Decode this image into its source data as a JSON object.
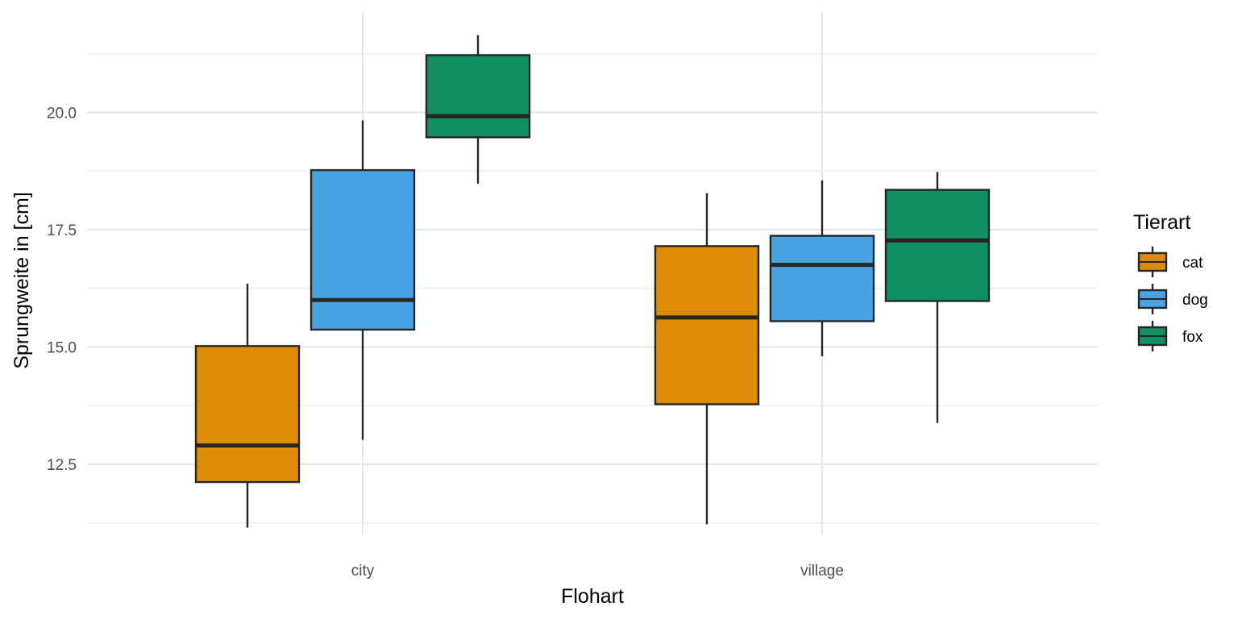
{
  "chart_data": {
    "type": "boxplot",
    "xlabel": "Flohart",
    "ylabel": "Sprungweite in [cm]",
    "categories": [
      "city",
      "village"
    ],
    "ylim": [
      11.0,
      21.9
    ],
    "yticks": [
      12.5,
      15.0,
      17.5,
      20.0
    ],
    "ytick_labels": [
      "12.5",
      "15.0",
      "17.5",
      "20.0"
    ],
    "grid": true,
    "legend": {
      "title": "Tierart",
      "position": "right"
    },
    "series": [
      {
        "name": "cat",
        "color": "#DE8C07",
        "boxes": [
          {
            "category": "city",
            "min": 11.15,
            "q1": 12.12,
            "median": 12.9,
            "q3": 15.02,
            "max": 16.35
          },
          {
            "category": "village",
            "min": 11.22,
            "q1": 13.78,
            "median": 15.63,
            "q3": 17.15,
            "max": 18.28
          }
        ]
      },
      {
        "name": "dog",
        "color": "#48A3E3",
        "boxes": [
          {
            "category": "city",
            "min": 13.02,
            "q1": 15.37,
            "median": 16.0,
            "q3": 18.77,
            "max": 19.83
          },
          {
            "category": "village",
            "min": 14.8,
            "q1": 15.55,
            "median": 16.75,
            "q3": 17.37,
            "max": 18.55
          }
        ]
      },
      {
        "name": "fox",
        "color": "#128F61",
        "boxes": [
          {
            "category": "city",
            "min": 18.48,
            "q1": 19.47,
            "median": 19.92,
            "q3": 21.22,
            "max": 21.65
          },
          {
            "category": "village",
            "min": 13.38,
            "q1": 15.98,
            "median": 17.27,
            "q3": 18.35,
            "max": 18.73
          }
        ]
      }
    ]
  }
}
